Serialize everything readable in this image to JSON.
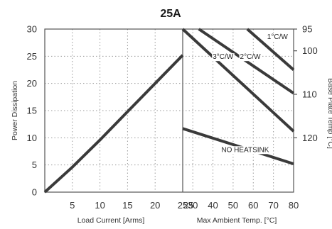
{
  "chart_data": {
    "type": "line",
    "title": "25A",
    "ylabel": "Power Dissipation",
    "ylabel_right": "Base Plate Temp [°C]",
    "ylim": [
      0,
      30
    ],
    "yticks": [
      "0",
      "5",
      "10",
      "15",
      "20",
      "25",
      "30"
    ],
    "right_ticks": [
      {
        "label": "95",
        "power": 30
      },
      {
        "label": "100",
        "power": 26
      },
      {
        "label": "110",
        "power": 18
      },
      {
        "label": "120",
        "power": 10
      }
    ],
    "left_panel": {
      "xlabel": "Load Current  [Arms]",
      "xlim": [
        0,
        25
      ],
      "xticks": [
        "5",
        "10",
        "15",
        "20",
        "25"
      ],
      "series": [
        {
          "x": [
            0,
            5,
            10,
            15,
            20,
            25
          ],
          "y": [
            0,
            4.6,
            9.6,
            14.8,
            20,
            25.2
          ]
        }
      ]
    },
    "right_panel": {
      "xlabel": "Max Ambient Temp. [°C]",
      "xlim": [
        25,
        80
      ],
      "xticks": [
        "25",
        "30",
        "40",
        "50",
        "60",
        "70",
        "80"
      ],
      "series": [
        {
          "name": "3°C/W",
          "x": [
            25,
            80
          ],
          "y": [
            30,
            11.2
          ]
        },
        {
          "name": "2°C/W",
          "x": [
            33,
            80
          ],
          "y": [
            30,
            18.2
          ]
        },
        {
          "name": "1°C/W",
          "x": [
            57,
            80
          ],
          "y": [
            30,
            22.5
          ]
        },
        {
          "name": "NO HEATSINK",
          "x": [
            25,
            80
          ],
          "y": [
            11.7,
            5.2
          ]
        }
      ]
    }
  }
}
